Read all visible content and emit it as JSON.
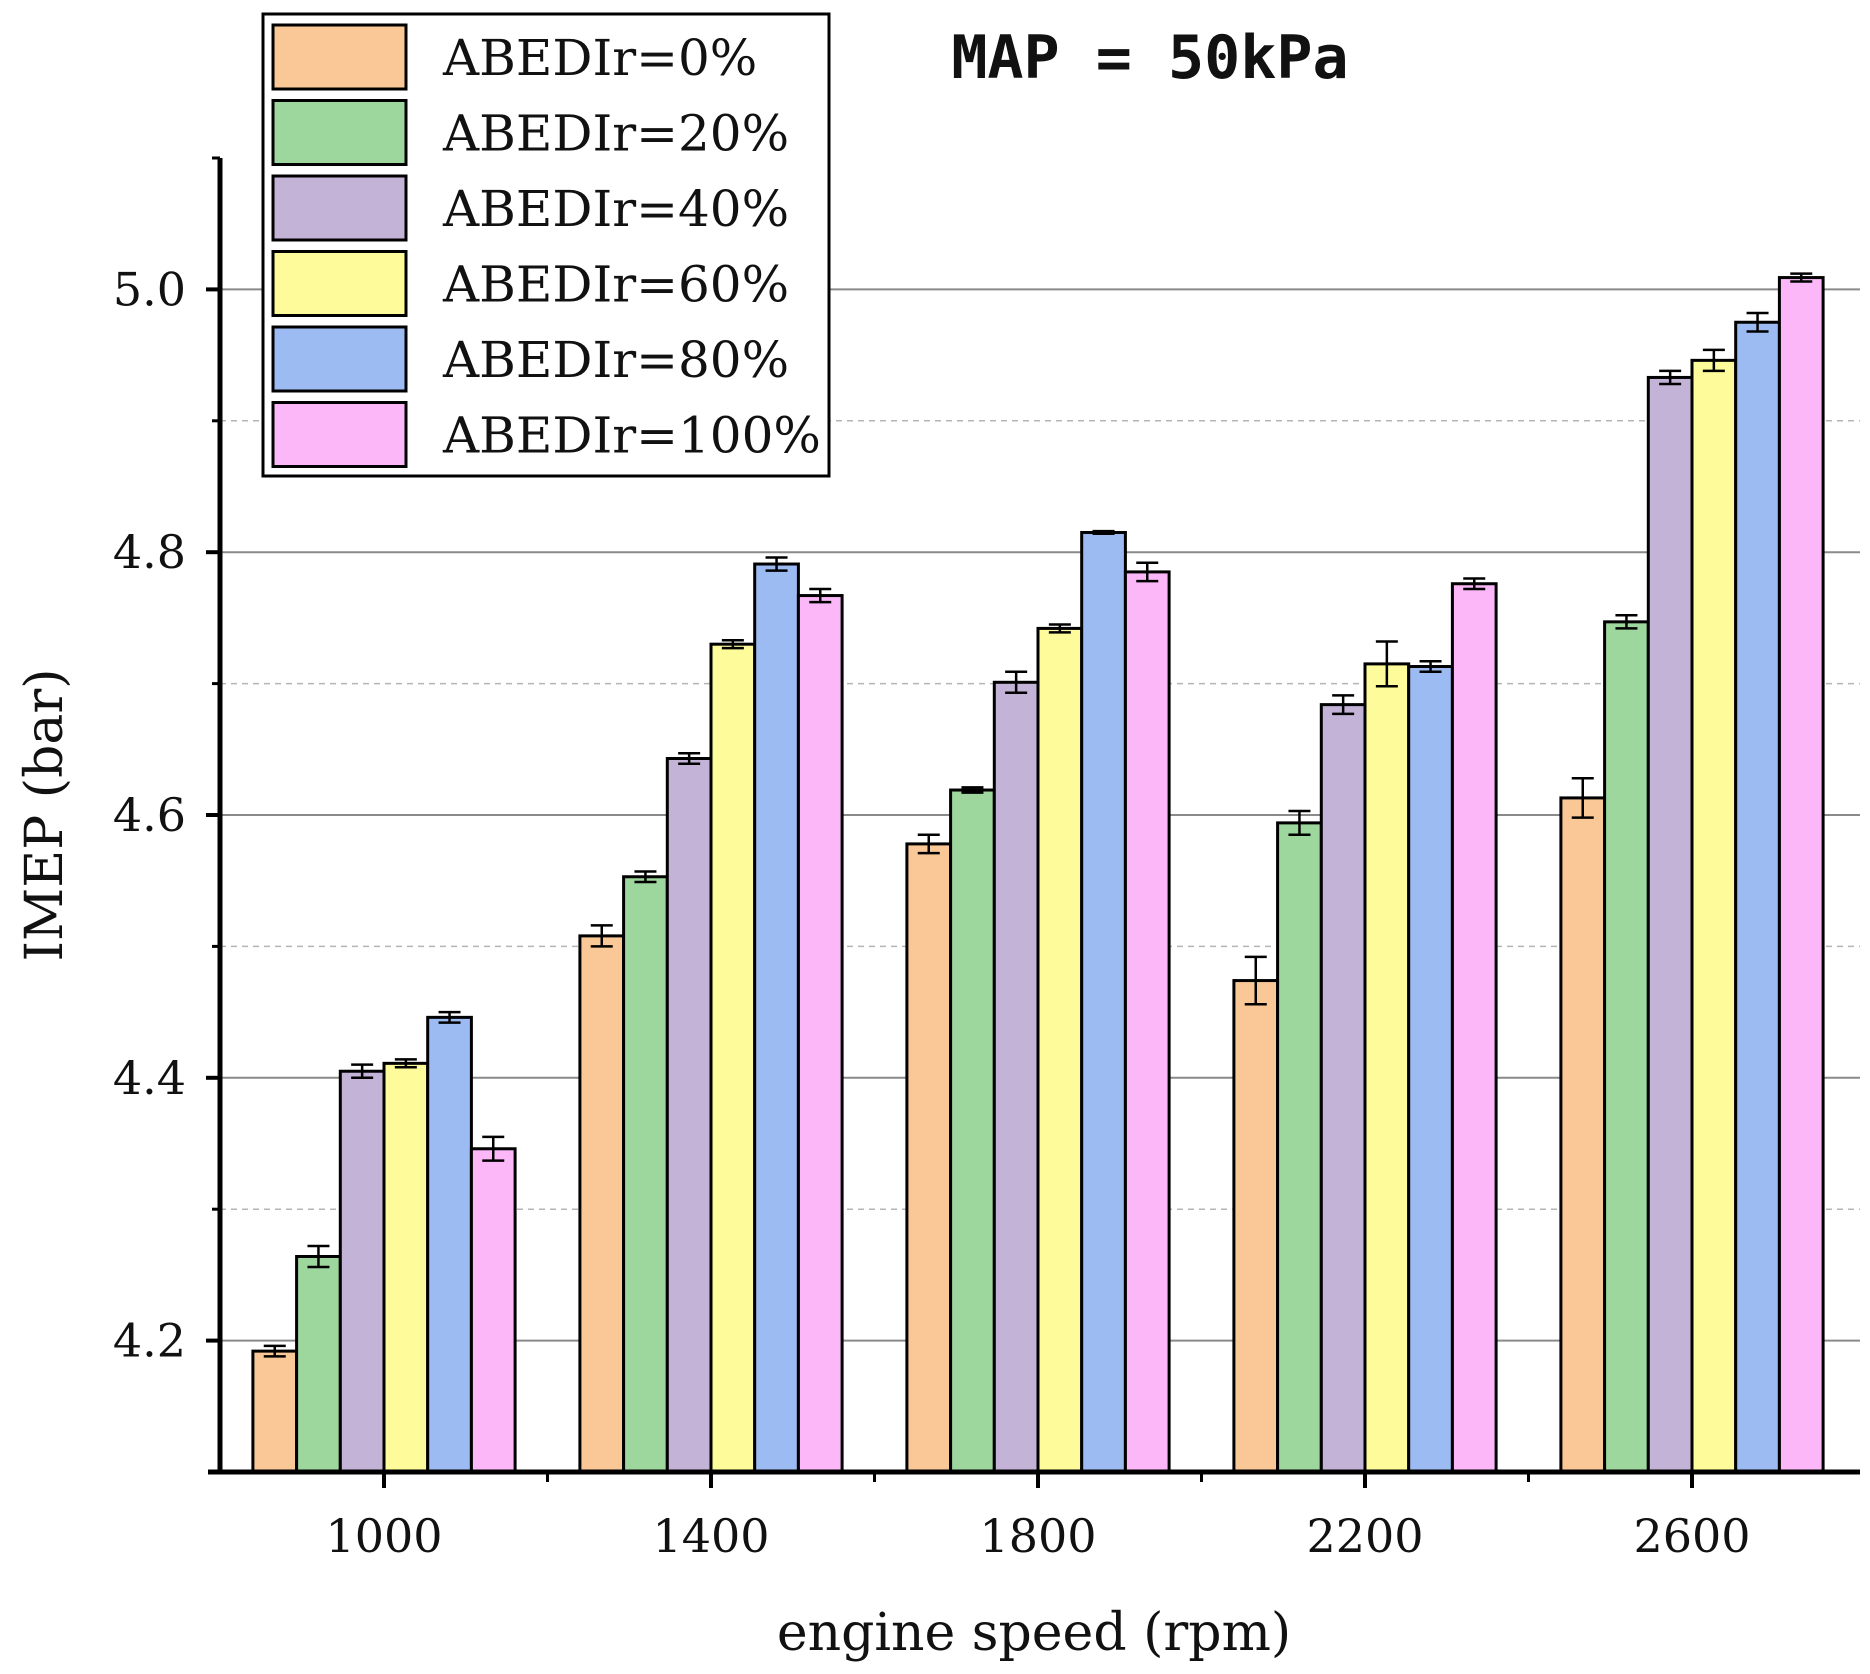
{
  "chart_data": {
    "type": "bar",
    "title": "MAP = 50kPa",
    "xlabel": "engine speed (rpm)",
    "ylabel": "IMEP (bar)",
    "categories": [
      "1000",
      "1400",
      "1800",
      "2200",
      "2600"
    ],
    "ylim": [
      4.1,
      5.1
    ],
    "yticks": [
      "4.2",
      "4.4",
      "4.6",
      "4.8",
      "5.0"
    ],
    "ytick_values": [
      4.2,
      4.4,
      4.6,
      4.8,
      5.0
    ],
    "minor_gridlines": [
      4.3,
      4.5,
      4.7,
      4.9
    ],
    "grid": true,
    "legend_position": "top-left",
    "series": [
      {
        "name": "ABEDIr=0%",
        "color": "#f9c896",
        "values": [
          4.192,
          4.508,
          4.578,
          4.474,
          4.613
        ],
        "errors": [
          0.004,
          0.008,
          0.007,
          0.018,
          0.015
        ]
      },
      {
        "name": "ABEDIr=20%",
        "color": "#9dd79d",
        "values": [
          4.264,
          4.553,
          4.619,
          4.594,
          4.747
        ],
        "errors": [
          0.008,
          0.004,
          0.002,
          0.009,
          0.005
        ]
      },
      {
        "name": "ABEDIr=40%",
        "color": "#c3b3d6",
        "values": [
          4.405,
          4.643,
          4.701,
          4.684,
          4.933
        ],
        "errors": [
          0.005,
          0.004,
          0.008,
          0.007,
          0.005
        ]
      },
      {
        "name": "ABEDIr=60%",
        "color": "#fdfb9a",
        "values": [
          4.411,
          4.73,
          4.742,
          4.715,
          4.946
        ],
        "errors": [
          0.003,
          0.003,
          0.003,
          0.017,
          0.008
        ]
      },
      {
        "name": "ABEDIr=80%",
        "color": "#9dbbf3",
        "values": [
          4.446,
          4.791,
          4.815,
          4.713,
          4.975
        ],
        "errors": [
          0.004,
          0.005,
          0.001,
          0.004,
          0.007
        ]
      },
      {
        "name": "ABEDIr=100%",
        "color": "#fbb7f8",
        "values": [
          4.346,
          4.767,
          4.785,
          4.776,
          5.009
        ],
        "errors": [
          0.009,
          0.005,
          0.007,
          0.004,
          0.003
        ]
      }
    ]
  }
}
